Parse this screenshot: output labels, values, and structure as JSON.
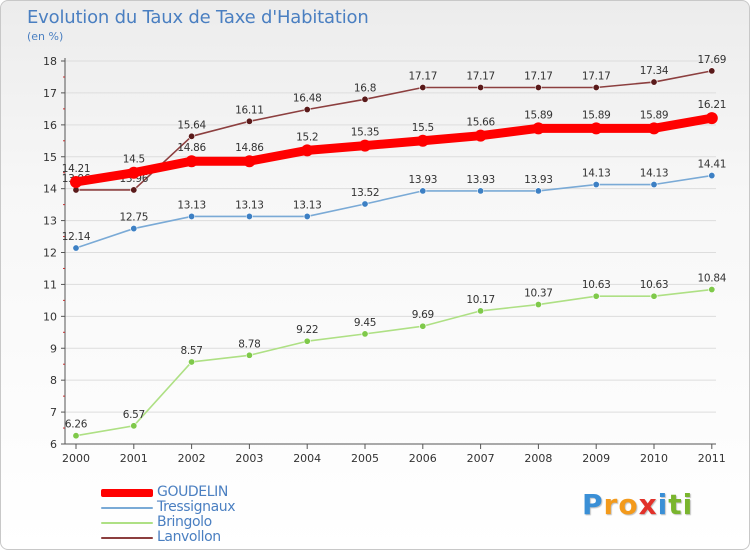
{
  "title": "Evolution du Taux de Taxe d'Habitation",
  "unit_label": "(en %)",
  "colors": {
    "title": "#4a7fc1",
    "axis": "#555555",
    "gridline": "#dddddd"
  },
  "logo": {
    "text": "Proxiti",
    "letters": [
      {
        "ch": "P",
        "color": "#3a8fd6"
      },
      {
        "ch": "r",
        "color": "#f39a1b"
      },
      {
        "ch": "o",
        "color": "#f39a1b"
      },
      {
        "ch": "x",
        "color": "#e2312a"
      },
      {
        "ch": "i",
        "color": "#3a8fd6"
      },
      {
        "ch": "t",
        "color": "#7ab52e"
      },
      {
        "ch": "i",
        "color": "#7ab52e"
      }
    ]
  },
  "chart_data": {
    "type": "line",
    "title": "Evolution du Taux de Taxe d'Habitation",
    "ylabel": "(en %)",
    "xlabel": "",
    "ylim": [
      6,
      18
    ],
    "yticks": [
      "6",
      "7",
      "8",
      "9",
      "10",
      "11",
      "12",
      "13",
      "14",
      "15",
      "16",
      "17",
      "18"
    ],
    "categories": [
      "2000",
      "2001",
      "2002",
      "2003",
      "2004",
      "2005",
      "2006",
      "2007",
      "2008",
      "2009",
      "2010",
      "2011"
    ],
    "grid": false,
    "legend_position": "bottom-left",
    "series": [
      {
        "name": "GOUDELIN",
        "color": "#ff0000",
        "marker_color": "#ff0000",
        "emphasis": "thick",
        "values": [
          14.21,
          14.5,
          14.86,
          14.86,
          15.2,
          15.35,
          15.5,
          15.66,
          15.89,
          15.89,
          15.89,
          16.21
        ],
        "labels": [
          "14.21",
          "14.5",
          "14.86",
          "14.86",
          "15.2",
          "15.35",
          "15.5",
          "15.66",
          "15.89",
          "15.89",
          "15.89",
          "16.21"
        ]
      },
      {
        "name": "Tressignaux",
        "color": "#7aaad6",
        "marker_color": "#3d80c4",
        "emphasis": "normal",
        "values": [
          12.14,
          12.75,
          13.13,
          13.13,
          13.13,
          13.52,
          13.93,
          13.93,
          13.93,
          14.13,
          14.13,
          14.41
        ],
        "labels": [
          "12.14",
          "12.75",
          "13.13",
          "13.13",
          "13.13",
          "13.52",
          "13.93",
          "13.93",
          "13.93",
          "14.13",
          "14.13",
          "14.41"
        ]
      },
      {
        "name": "Bringolo",
        "color": "#aee084",
        "marker_color": "#7fc94a",
        "emphasis": "normal",
        "values": [
          6.26,
          6.57,
          8.57,
          8.78,
          9.22,
          9.45,
          9.69,
          10.17,
          10.37,
          10.63,
          10.63,
          10.84
        ],
        "labels": [
          "6.26",
          "6.57",
          "8.57",
          "8.78",
          "9.22",
          "9.45",
          "9.69",
          "10.17",
          "10.37",
          "10.63",
          "10.63",
          "10.84"
        ]
      },
      {
        "name": "Lanvollon",
        "color": "#8c3f3f",
        "marker_color": "#5a1a1a",
        "emphasis": "normal",
        "values": [
          13.96,
          13.96,
          15.64,
          16.11,
          16.48,
          16.8,
          17.17,
          17.17,
          17.17,
          17.17,
          17.34,
          17.69
        ],
        "labels": [
          "13.96",
          "13.96",
          "15.64",
          "16.11",
          "16.48",
          "16.8",
          "17.17",
          "17.17",
          "17.17",
          "17.17",
          "17.34",
          "17.69"
        ]
      }
    ]
  }
}
